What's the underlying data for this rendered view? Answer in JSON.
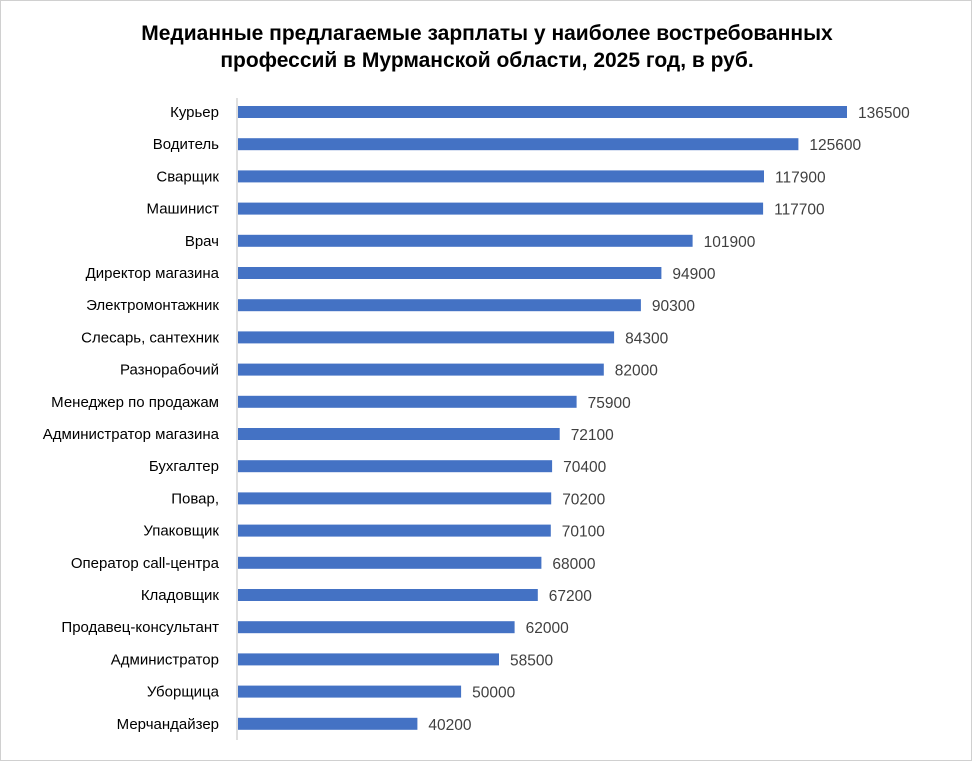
{
  "chart_data": {
    "type": "bar",
    "orientation": "horizontal",
    "title_lines": [
      "Медианные предлагаемые зарплаты у наиболее востребованных",
      "профессий в Мурманской области, 2025 год, в руб."
    ],
    "categories": [
      "Курьер",
      "Водитель",
      "Сварщик",
      "Машинист",
      "Врач",
      "Директор магазина",
      "Электромонтажник",
      "Слесарь, сантехник",
      "Разнорабочий",
      "Менеджер по продажам",
      "Администратор магазина",
      "Бухгалтер",
      "Повар,",
      "Упаковщик",
      "Оператор call-центра",
      "Кладовщик",
      "Продавец-консультант",
      "Администратор",
      "Уборщица",
      "Мерчандайзер"
    ],
    "values": [
      136500,
      125600,
      117900,
      117700,
      101900,
      94900,
      90300,
      84300,
      82000,
      75900,
      72100,
      70400,
      70200,
      70100,
      68000,
      67200,
      62000,
      58500,
      50000,
      40200
    ],
    "data_labels": [
      "136500",
      "125600",
      "117900",
      "117700",
      "101900",
      "94900",
      "90300",
      "84300",
      "82000",
      "75900",
      "72100",
      "70400",
      "70200",
      "70100",
      "68000",
      "67200",
      "62000",
      "58500",
      "50000",
      "40200"
    ],
    "xlim": [
      0,
      140000
    ],
    "value_axis_visible": false,
    "grid": false,
    "legend": "none",
    "bar_color": "#4472c4",
    "axis_color": "#bfbfbf"
  }
}
